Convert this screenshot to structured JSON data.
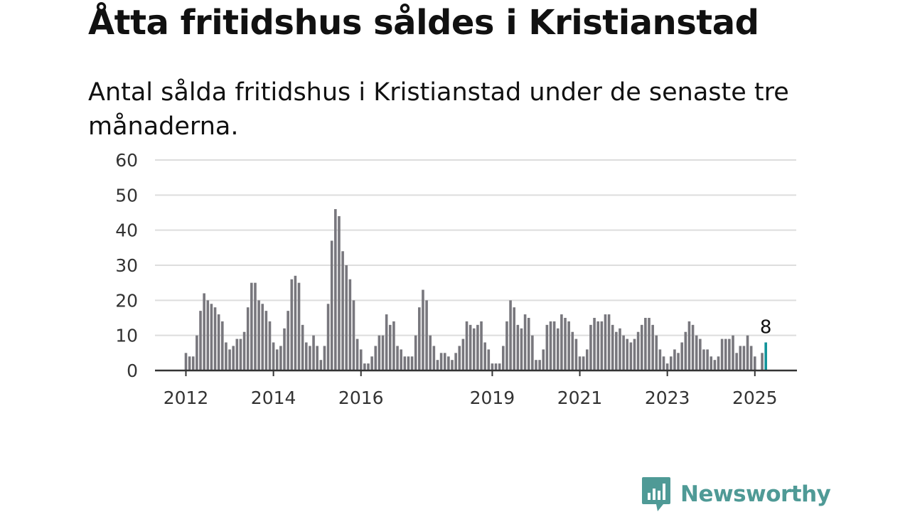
{
  "title": "Åtta fritidshus såldes i Kristianstad",
  "subtitle": "Antal sålda fritidshus i Kristianstad under de senaste tre månaderna.",
  "brand": {
    "name": "Newsworthy",
    "icon": "newsworthy-logo-icon",
    "color": "#4f9a96"
  },
  "colors": {
    "bar": "#78777d",
    "highlight": "#11939a",
    "grid": "#dddddd",
    "axis": "#333333"
  },
  "chart_data": {
    "type": "bar",
    "title": "Åtta fritidshus såldes i Kristianstad",
    "xlabel": "",
    "ylabel": "",
    "ylim": [
      0,
      60
    ],
    "yticks": [
      "0",
      "10",
      "20",
      "30",
      "40",
      "50",
      "60"
    ],
    "xticks": [
      {
        "label": "2012",
        "index": 0
      },
      {
        "label": "2014",
        "index": 24
      },
      {
        "label": "2016",
        "index": 48
      },
      {
        "label": "2019",
        "index": 84
      },
      {
        "label": "2021",
        "index": 108
      },
      {
        "label": "2023",
        "index": 132
      },
      {
        "label": "2025",
        "index": 156
      }
    ],
    "grid": true,
    "highlight_label": "8",
    "series": [
      {
        "values": [
          5,
          4,
          4,
          10,
          17,
          22,
          20,
          19,
          18,
          16,
          14,
          8,
          6,
          7,
          9,
          9,
          11,
          18,
          25,
          25,
          20,
          19,
          17,
          14,
          8,
          6,
          7,
          12,
          17,
          26,
          27,
          25,
          13,
          8,
          7,
          10,
          7,
          3,
          7,
          19,
          37,
          46,
          44,
          34,
          30,
          26,
          20,
          9,
          6,
          2,
          2,
          4,
          7,
          10,
          10,
          16,
          13,
          14,
          7,
          6,
          4,
          4,
          4,
          10,
          18,
          23,
          20,
          10,
          7,
          3,
          5,
          5,
          4,
          3,
          5,
          7,
          9,
          14,
          13,
          12,
          13,
          14,
          8,
          6,
          2,
          2,
          2,
          7,
          14,
          20,
          18,
          13,
          12,
          16,
          15,
          10,
          3,
          3,
          6,
          13,
          14,
          14,
          12,
          16,
          15,
          14,
          11,
          9,
          4,
          4,
          6,
          13,
          15,
          14,
          14,
          16,
          16,
          13,
          11,
          12,
          10,
          9,
          8,
          9,
          11,
          13,
          15,
          15,
          13,
          10,
          6,
          4,
          2,
          4,
          6,
          5,
          8,
          11,
          14,
          13,
          10,
          9,
          6,
          6,
          4,
          3,
          4,
          9,
          9,
          9,
          10,
          5,
          7,
          7,
          10,
          7,
          4,
          null,
          5,
          8
        ]
      }
    ]
  }
}
